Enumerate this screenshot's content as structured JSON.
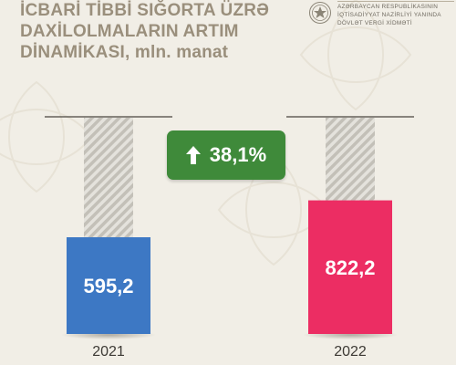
{
  "header": {
    "title": "İCBARİ TİBBİ SIĞORTA ÜZRƏ\nDAXİLOLMALARIN ARTIM\nDİNAMİKASI, mln. manat",
    "org_lines": [
      "AZƏRBAYCAN RESPUBLİKASININ",
      "İQTİSADİYYAT NAZİRLİYİ YANINDA",
      "DÖVLƏT VERGİ XİDMƏTİ"
    ]
  },
  "badge": {
    "label": "38,1%",
    "icon": "arrow-up-icon",
    "color": "#3f8a3a"
  },
  "chart_data": {
    "type": "bar",
    "title": "İCBARİ TİBBİ SIĞORTA ÜZRƏ DAXİLOLMALARIN ARTIM DİNAMİKASI, mln. manat",
    "categories": [
      "2021",
      "2022"
    ],
    "values": [
      595.2,
      822.2
    ],
    "value_labels": [
      "595,2",
      "822,2"
    ],
    "colors": [
      "#3d78c4",
      "#ec2d63"
    ],
    "ylim": [
      0,
      1000
    ],
    "grid": false
  }
}
